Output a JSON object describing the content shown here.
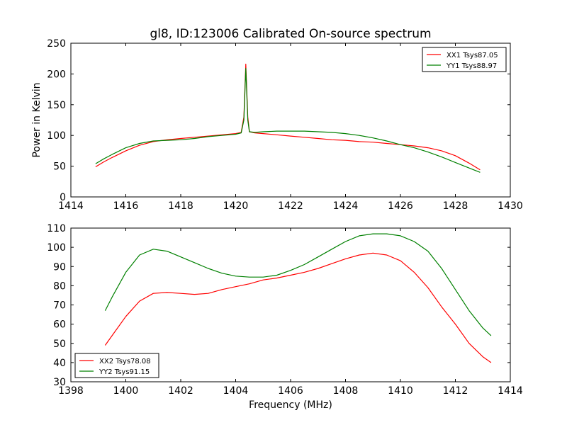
{
  "title": "gl8, ID:123006 Calibrated On-source spectrum",
  "colors": {
    "red": "#ff0000",
    "green": "#008000",
    "axes": "#000000",
    "background": "#ffffff"
  },
  "chart_data": [
    {
      "type": "line",
      "title": "gl8, ID:123006 Calibrated On-source spectrum",
      "xlabel": "",
      "ylabel": "Power in Kelvin",
      "xlim": [
        1414,
        1430
      ],
      "ylim": [
        0,
        250
      ],
      "xticks": [
        1414,
        1416,
        1418,
        1420,
        1422,
        1424,
        1426,
        1428,
        1430
      ],
      "yticks": [
        0,
        50,
        100,
        150,
        200,
        250
      ],
      "grid": false,
      "legend_position": "top-right",
      "series": [
        {
          "name": "XX1 Tsys87.05",
          "color": "#ff0000",
          "x": [
            1414.9,
            1415.2,
            1415.5,
            1416.0,
            1416.5,
            1417.0,
            1417.5,
            1418.0,
            1418.5,
            1419.0,
            1419.5,
            1420.0,
            1420.2,
            1420.3,
            1420.37,
            1420.44,
            1420.5,
            1420.7,
            1421.0,
            1421.5,
            1422.0,
            1422.5,
            1423.0,
            1423.5,
            1424.0,
            1424.5,
            1425.0,
            1425.5,
            1426.0,
            1426.5,
            1427.0,
            1427.5,
            1428.0,
            1428.5,
            1428.9
          ],
          "y": [
            49,
            57,
            64,
            75,
            84,
            90,
            93,
            95,
            97,
            99,
            101,
            103,
            105,
            130,
            216,
            130,
            106,
            104,
            103,
            101,
            99,
            97,
            95,
            93,
            92,
            90,
            89,
            87,
            85,
            83,
            80,
            75,
            67,
            55,
            44
          ]
        },
        {
          "name": "YY1 Tsys88.97",
          "color": "#008000",
          "x": [
            1414.9,
            1415.2,
            1415.5,
            1416.0,
            1416.5,
            1417.0,
            1417.5,
            1418.0,
            1418.5,
            1419.0,
            1419.5,
            1420.0,
            1420.2,
            1420.3,
            1420.37,
            1420.44,
            1420.5,
            1420.7,
            1421.0,
            1421.5,
            1422.0,
            1422.5,
            1423.0,
            1423.5,
            1424.0,
            1424.5,
            1425.0,
            1425.5,
            1426.0,
            1426.5,
            1427.0,
            1427.5,
            1428.0,
            1428.5,
            1428.9
          ],
          "y": [
            54,
            62,
            69,
            80,
            87,
            91,
            92,
            93,
            95,
            98,
            100,
            102,
            104,
            125,
            209,
            125,
            106,
            105,
            106,
            107,
            107,
            107,
            106,
            105,
            103,
            100,
            96,
            91,
            85,
            80,
            73,
            65,
            56,
            47,
            40
          ]
        }
      ]
    },
    {
      "type": "line",
      "title": "",
      "xlabel": "Frequency (MHz)",
      "ylabel": "",
      "xlim": [
        1398,
        1414
      ],
      "ylim": [
        30,
        110
      ],
      "xticks": [
        1398,
        1400,
        1402,
        1404,
        1406,
        1408,
        1410,
        1412,
        1414
      ],
      "yticks": [
        30,
        40,
        50,
        60,
        70,
        80,
        90,
        100,
        110
      ],
      "grid": false,
      "legend_position": "bottom-left",
      "series": [
        {
          "name": "XX2 Tsys78.08",
          "color": "#ff0000",
          "x": [
            1399.25,
            1399.5,
            1400.0,
            1400.5,
            1401.0,
            1401.5,
            1402.0,
            1402.5,
            1403.0,
            1403.5,
            1404.0,
            1404.5,
            1405.0,
            1405.5,
            1406.0,
            1406.5,
            1407.0,
            1407.5,
            1408.0,
            1408.5,
            1409.0,
            1409.5,
            1410.0,
            1410.5,
            1411.0,
            1411.5,
            1412.0,
            1412.5,
            1413.0,
            1413.3
          ],
          "y": [
            49,
            54,
            64,
            72,
            76,
            76.5,
            76,
            75.5,
            76,
            78,
            79.5,
            81,
            83,
            84,
            85.5,
            87,
            89,
            91.5,
            94,
            96,
            97,
            96,
            93,
            87,
            79,
            69,
            60,
            50,
            43,
            40
          ]
        },
        {
          "name": "YY2 Tsys91.15",
          "color": "#008000",
          "x": [
            1399.25,
            1399.5,
            1400.0,
            1400.5,
            1401.0,
            1401.5,
            1402.0,
            1402.5,
            1403.0,
            1403.5,
            1404.0,
            1404.5,
            1405.0,
            1405.5,
            1406.0,
            1406.5,
            1407.0,
            1407.5,
            1408.0,
            1408.5,
            1409.0,
            1409.5,
            1410.0,
            1410.5,
            1411.0,
            1411.5,
            1412.0,
            1412.5,
            1413.0,
            1413.3
          ],
          "y": [
            67,
            74,
            87,
            96,
            99,
            98,
            95,
            92,
            89,
            86.5,
            85,
            84.5,
            84.5,
            85.5,
            88,
            91,
            95,
            99,
            103,
            106,
            107,
            107,
            106,
            103,
            98,
            89,
            78,
            67,
            58,
            54
          ]
        }
      ]
    }
  ]
}
